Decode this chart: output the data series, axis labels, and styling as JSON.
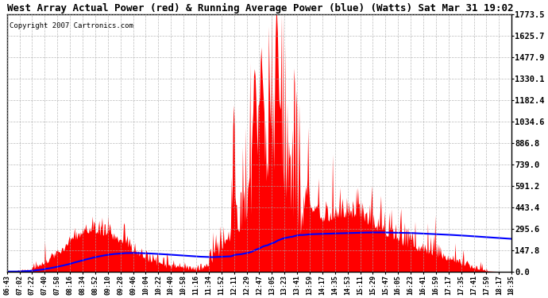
{
  "title": "West Array Actual Power (red) & Running Average Power (blue) (Watts) Sat Mar 31 19:02",
  "copyright": "Copyright 2007 Cartronics.com",
  "yticks": [
    0.0,
    147.8,
    295.6,
    443.4,
    591.2,
    739.0,
    886.8,
    1034.6,
    1182.4,
    1330.1,
    1477.9,
    1625.7,
    1773.5
  ],
  "ymax": 1773.5,
  "ymin": 0.0,
  "bg_color": "#ffffff",
  "red_color": "#ff0000",
  "blue_color": "#0000ff",
  "grid_color": "#aaaaaa",
  "xtick_labels": [
    "06:43",
    "07:02",
    "07:22",
    "07:40",
    "07:58",
    "08:16",
    "08:34",
    "08:52",
    "09:10",
    "09:28",
    "09:46",
    "10:04",
    "10:22",
    "10:40",
    "10:58",
    "11:16",
    "11:34",
    "11:52",
    "12:11",
    "12:29",
    "12:47",
    "13:05",
    "13:23",
    "13:41",
    "13:59",
    "14:17",
    "14:35",
    "14:53",
    "15:11",
    "15:29",
    "15:47",
    "16:05",
    "16:23",
    "16:41",
    "16:59",
    "17:17",
    "17:35",
    "17:41",
    "17:59",
    "18:17",
    "18:35"
  ],
  "title_fontsize": 9,
  "copyright_fontsize": 6.5,
  "ytick_fontsize": 7.5,
  "xtick_fontsize": 6
}
